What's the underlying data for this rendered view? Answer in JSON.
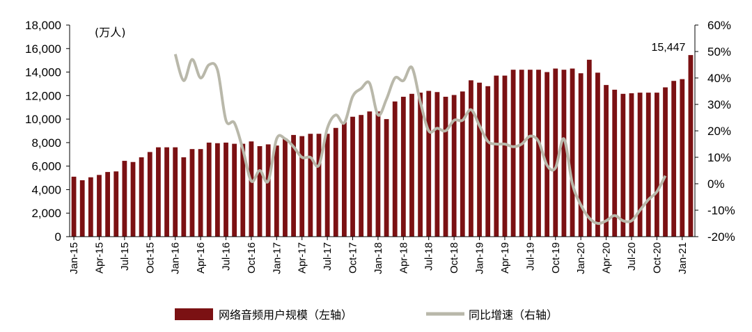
{
  "chart_data": {
    "type": "bar+line",
    "unit_label": "(万人)",
    "left_axis": {
      "ylim": [
        0,
        18000
      ],
      "ticks": [
        "0",
        "2,000",
        "4,000",
        "6,000",
        "8,000",
        "10,000",
        "12,000",
        "14,000",
        "16,000",
        "18,000"
      ]
    },
    "right_axis": {
      "ylim": [
        -20,
        60
      ],
      "ticks": [
        "-20%",
        "-10%",
        "0%",
        "10%",
        "20%",
        "30%",
        "40%",
        "50%",
        "60%"
      ]
    },
    "x_labels": [
      {
        "index": 0,
        "label": "Jan-15"
      },
      {
        "index": 3,
        "label": "Apr-15"
      },
      {
        "index": 6,
        "label": "Jul-15"
      },
      {
        "index": 9,
        "label": "Oct-15"
      },
      {
        "index": 12,
        "label": "Jan-16"
      },
      {
        "index": 15,
        "label": "Apr-16"
      },
      {
        "index": 18,
        "label": "Jul-16"
      },
      {
        "index": 21,
        "label": "Oct-16"
      },
      {
        "index": 24,
        "label": "Jan-17"
      },
      {
        "index": 27,
        "label": "Apr-17"
      },
      {
        "index": 30,
        "label": "Jul-17"
      },
      {
        "index": 33,
        "label": "Oct-17"
      },
      {
        "index": 36,
        "label": "Jan-18"
      },
      {
        "index": 39,
        "label": "Apr-18"
      },
      {
        "index": 42,
        "label": "Jul-18"
      },
      {
        "index": 45,
        "label": "Oct-18"
      },
      {
        "index": 48,
        "label": "Jan-19"
      },
      {
        "index": 51,
        "label": "Apr-19"
      },
      {
        "index": 54,
        "label": "Jul-19"
      },
      {
        "index": 57,
        "label": "Oct-19"
      },
      {
        "index": 60,
        "label": "Jan-20"
      },
      {
        "index": 63,
        "label": "Apr-20"
      },
      {
        "index": 66,
        "label": "Jul-20"
      },
      {
        "index": 69,
        "label": "Oct-20"
      },
      {
        "index": 72,
        "label": "Jan-21"
      }
    ],
    "series": [
      {
        "name": "网络音频用户规模（左轴）",
        "kind": "bar",
        "axis": "left",
        "color": "#7b1113",
        "values": [
          5100,
          4800,
          5050,
          5250,
          5500,
          5550,
          6450,
          6350,
          6750,
          7200,
          7600,
          7600,
          7600,
          6750,
          7450,
          7450,
          8000,
          7950,
          8000,
          7900,
          7900,
          8100,
          7700,
          7850,
          7750,
          8350,
          8650,
          8550,
          8750,
          8750,
          8750,
          9250,
          9750,
          10200,
          10350,
          10650,
          10650,
          10000,
          11500,
          11900,
          12150,
          12250,
          12400,
          12300,
          11900,
          12050,
          12350,
          13300,
          13100,
          12800,
          13700,
          13700,
          14200,
          14200,
          14200,
          14200,
          14000,
          14300,
          14200,
          14300,
          13900,
          15050,
          13950,
          12900,
          12500,
          12150,
          12200,
          12250,
          12250,
          12250,
          12700,
          13250,
          13400,
          15447
        ]
      },
      {
        "name": "同比增速（右轴）",
        "kind": "line",
        "axis": "right",
        "color": "#b9b8aa",
        "start_index": 12,
        "values": [
          49,
          39,
          47,
          40,
          45,
          43,
          24,
          23,
          13,
          1,
          5,
          1,
          17,
          17,
          14,
          10,
          10,
          7,
          21,
          26,
          23,
          33,
          36,
          38,
          26,
          32,
          40,
          39,
          44,
          31,
          20,
          21,
          20,
          24,
          24,
          28,
          22,
          16,
          15,
          15,
          14,
          15,
          18,
          16,
          7,
          6,
          17,
          0,
          -8,
          -13,
          -15,
          -14,
          -12,
          -14,
          -14,
          -10,
          -6,
          -3,
          3
        ]
      }
    ],
    "data_label": {
      "index": 73,
      "text": "15,447"
    },
    "legend": {
      "placement": "bottom",
      "items": [
        {
          "label": "网络音频用户规模（左轴）",
          "kind": "bar",
          "color": "#7b1113"
        },
        {
          "label": "同比增速（右轴）",
          "kind": "line",
          "color": "#b9b8aa"
        }
      ]
    }
  }
}
